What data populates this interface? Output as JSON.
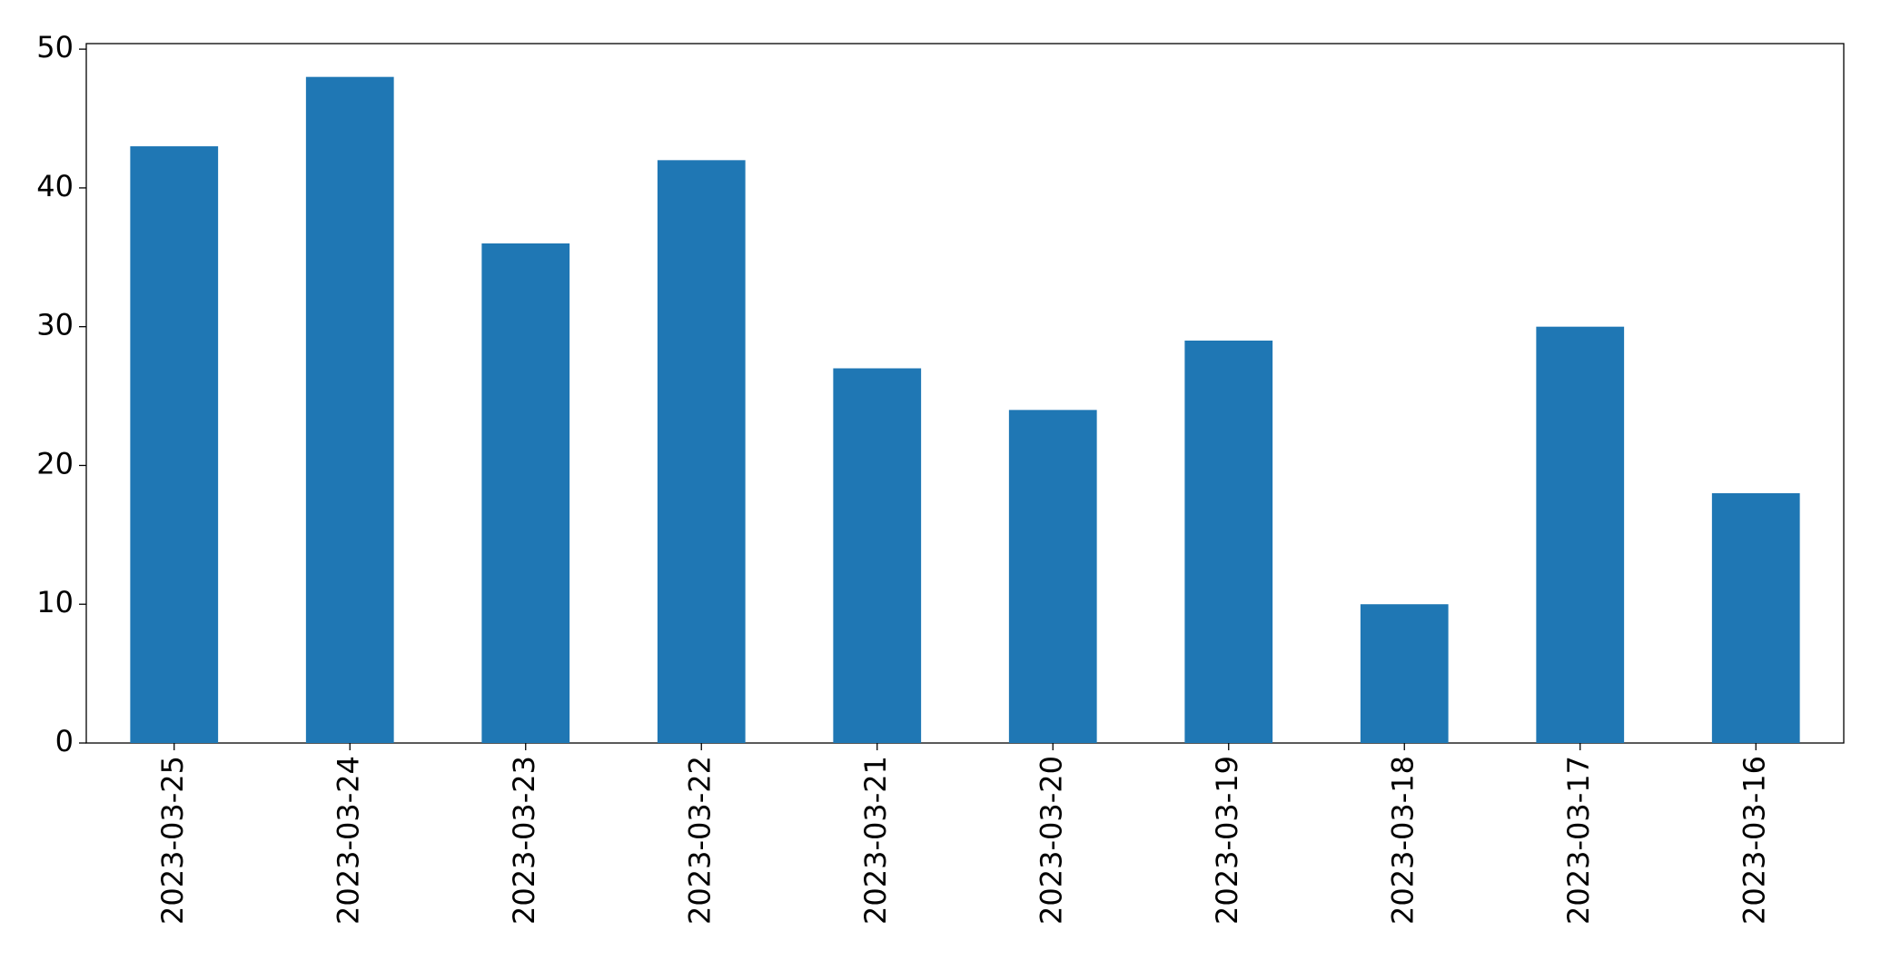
{
  "chart_data": {
    "type": "bar",
    "categories": [
      "2023-03-25",
      "2023-03-24",
      "2023-03-23",
      "2023-03-22",
      "2023-03-21",
      "2023-03-20",
      "2023-03-19",
      "2023-03-18",
      "2023-03-17",
      "2023-03-16"
    ],
    "values": [
      43,
      48,
      36,
      42,
      27,
      24,
      29,
      10,
      30,
      18
    ],
    "color": "#1f77b4",
    "ylim": [
      0,
      50.4
    ],
    "yticks": [
      0,
      10,
      20,
      30,
      40,
      50
    ],
    "grid": false
  }
}
